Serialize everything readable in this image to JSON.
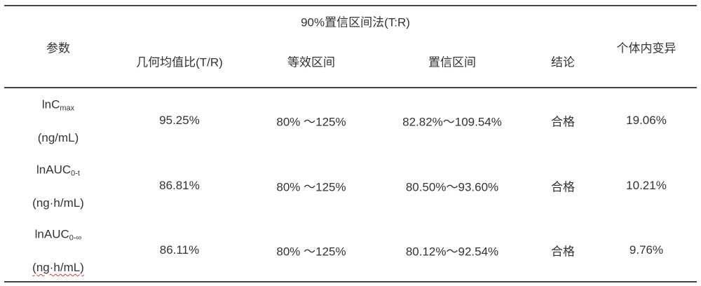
{
  "header": {
    "param": "参数",
    "group": "90%置信区间法(T:R)",
    "geo_mean": "几何均值比(T/R)",
    "equiv_range": "等效区间",
    "ci": "置信区间",
    "conclusion": "结论",
    "intra_cv": "个体内变异"
  },
  "rows": [
    {
      "param_main": "lnC",
      "param_sub": "max",
      "unit": "(ng/mL)",
      "geo_mean": "95.25%",
      "equiv_range": "80% ～125%",
      "ci": "82.82%～109.54%",
      "conclusion": "合格",
      "intra_cv": "19.06%"
    },
    {
      "param_main": "lnAUC",
      "param_sub": "0-t",
      "unit": "(ng·h/mL)",
      "geo_mean": "86.81%",
      "equiv_range": "80% ～125%",
      "ci": "80.50%～93.60%",
      "conclusion": "合格",
      "intra_cv": "10.21%"
    },
    {
      "param_main": "lnAUC",
      "param_sub": "0-∞",
      "unit": "(ng·h/mL)",
      "geo_mean": "86.11%",
      "equiv_range": "80% ～125%",
      "ci": "80.12%～92.54%",
      "conclusion": "合格",
      "intra_cv": "9.76%"
    }
  ]
}
